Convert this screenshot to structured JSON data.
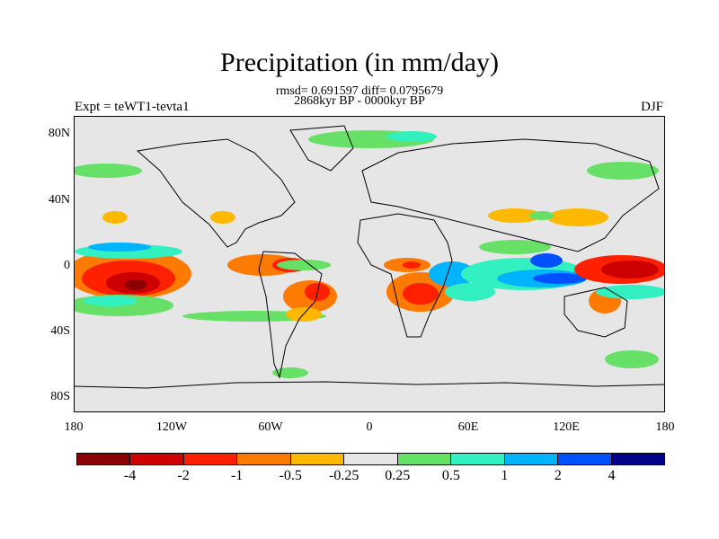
{
  "title": "Precipitation (in mm/day)",
  "subtitle_stats": "rmsd= 0.691597 diff= 0.0795679",
  "subtitle_period": "2868kyr BP - 0000kyr BP",
  "experiment": "Expt = teWT1-tevta1",
  "season": "DJF",
  "y_ticks": [
    "80N",
    "40N",
    "0",
    "40S",
    "80S"
  ],
  "x_ticks": [
    "180",
    "120W",
    "60W",
    "0",
    "60E",
    "120E",
    "180"
  ],
  "colorbar": {
    "labels": [
      "-4",
      "-2",
      "-1",
      "-0.5",
      "-0.25",
      "0.25",
      "0.5",
      "1",
      "2",
      "4"
    ],
    "colors": [
      "#8b0000",
      "#cc0000",
      "#ff2000",
      "#ff7a00",
      "#ffb800",
      "#e6e6e6",
      "#66e066",
      "#33f0c0",
      "#00b4ff",
      "#0050ff",
      "#00008b"
    ]
  }
}
